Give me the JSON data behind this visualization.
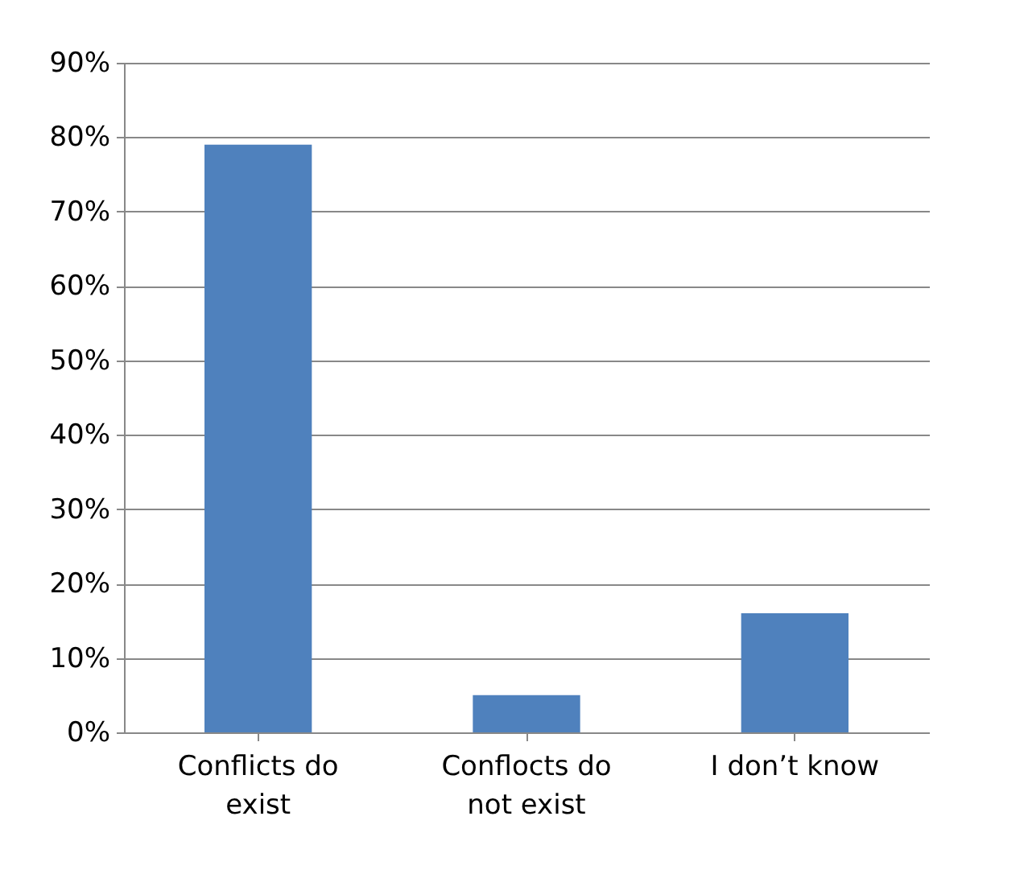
{
  "chart_data": {
    "type": "bar",
    "categories": [
      "Conflicts do exist",
      "Conflocts do not exist",
      "I don’t know"
    ],
    "values": [
      79,
      5,
      16
    ],
    "color": "#4f81bd",
    "ylim": [
      0,
      90
    ],
    "yticks": [
      {
        "value": 0,
        "label": "0%"
      },
      {
        "value": 10,
        "label": "10%"
      },
      {
        "value": 20,
        "label": "20%"
      },
      {
        "value": 30,
        "label": "30%"
      },
      {
        "value": 40,
        "label": "40%"
      },
      {
        "value": 50,
        "label": "50%"
      },
      {
        "value": 60,
        "label": "60%"
      },
      {
        "value": 70,
        "label": "70%"
      },
      {
        "value": 80,
        "label": "80%"
      },
      {
        "value": 90,
        "label": "90%"
      }
    ],
    "grid": "y"
  }
}
